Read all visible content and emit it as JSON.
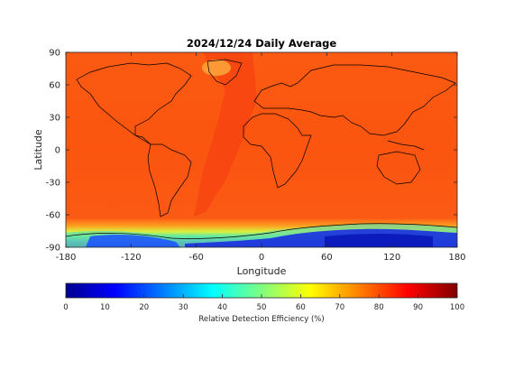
{
  "chart_data": {
    "type": "heatmap",
    "title": "2024/12/24 Daily Average",
    "xlabel": "Longitude",
    "ylabel": "Latitude",
    "xlim": [
      -180,
      180
    ],
    "ylim": [
      -90,
      90
    ],
    "xticks": [
      -180,
      -120,
      -60,
      0,
      60,
      120,
      180
    ],
    "yticks": [
      90,
      60,
      30,
      0,
      -30,
      -60,
      -90
    ],
    "grid": false,
    "colorbar": {
      "label": "Relative Detection Efficiency (%)",
      "range": [
        0,
        100
      ],
      "ticks": [
        0,
        10,
        20,
        30,
        40,
        50,
        60,
        70,
        80,
        90,
        100
      ],
      "colormap": "jet",
      "placement": "bottom"
    },
    "description_values": {
      "typical_value_pct": 82,
      "arctic_greenland_value_pct": 73,
      "atlantic_band_value_pct": 87,
      "antarctic_margin_value_pct": 45,
      "antarctic_interior_value_pct": 8
    }
  }
}
